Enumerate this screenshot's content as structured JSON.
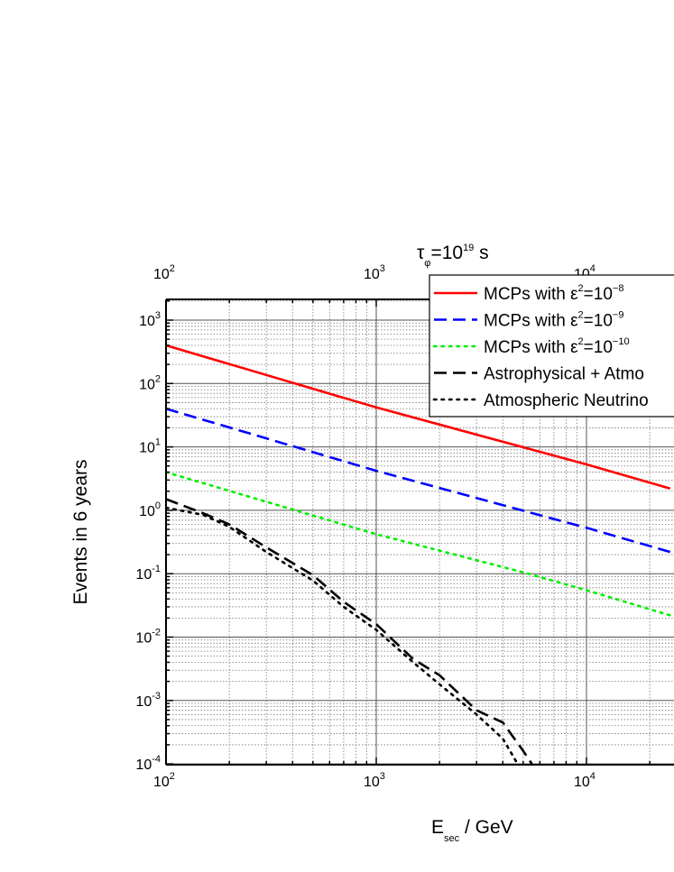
{
  "chart_data": {
    "type": "line",
    "title": "τφ=10¹⁹ s",
    "title_parts": {
      "base": "τ",
      "base_sub": "φ",
      "eq": "=10",
      "sup": "19",
      "unit": " s"
    },
    "xlabel": "Esec / GeV",
    "xlabel_parts": {
      "base": "E",
      "sub": "sec",
      "rest": " / GeV"
    },
    "ylabel": "Events in 6 years",
    "x_scale": "log",
    "y_scale": "log",
    "xlim": [
      100,
      25000
    ],
    "ylim": [
      0.0001,
      2000
    ],
    "grid": true,
    "legend_position": "top-right",
    "x_ticks": [
      {
        "value": 100,
        "base": "10",
        "exp": "2"
      },
      {
        "value": 1000,
        "base": "10",
        "exp": "3"
      },
      {
        "value": 10000,
        "base": "10",
        "exp": "4"
      }
    ],
    "y_ticks": [
      {
        "value": 0.0001,
        "base": "10",
        "exp": "-4"
      },
      {
        "value": 0.001,
        "base": "10",
        "exp": "-3"
      },
      {
        "value": 0.01,
        "base": "10",
        "exp": "-2"
      },
      {
        "value": 0.1,
        "base": "10",
        "exp": "-1"
      },
      {
        "value": 1,
        "base": "10",
        "exp": "0"
      },
      {
        "value": 10,
        "base": "10",
        "exp": "1"
      },
      {
        "value": 100,
        "base": "10",
        "exp": "2"
      },
      {
        "value": 1000,
        "base": "10",
        "exp": "3"
      }
    ],
    "series": [
      {
        "name": "MCPs with ε²=10⁻⁸",
        "label_base": "MCPs with ε",
        "label_sup": "2",
        "label_eq": "=10",
        "label_exp": "−8",
        "color": "#ff0000",
        "dash": "solid",
        "x": [
          100,
          1000,
          10000,
          25000
        ],
        "y": [
          400,
          42,
          5.3,
          2.2
        ]
      },
      {
        "name": "MCPs with ε²=10⁻⁹",
        "label_base": "MCPs with ε",
        "label_sup": "2",
        "label_eq": "=10",
        "label_exp": "−9",
        "color": "#0000ff",
        "dash": "dash",
        "x": [
          100,
          1000,
          10000,
          25000
        ],
        "y": [
          40,
          4.2,
          0.53,
          0.22
        ]
      },
      {
        "name": "MCPs with ε²=10⁻¹⁰",
        "label_base": "MCPs with ε",
        "label_sup": "2",
        "label_eq": "=10",
        "label_exp": "−10",
        "color": "#00ee00",
        "dash": "dot",
        "x": [
          100,
          1000,
          5000,
          10000,
          25000
        ],
        "y": [
          4.0,
          0.42,
          0.105,
          0.055,
          0.022
        ]
      },
      {
        "name": "Astrophysical + Atmospheric",
        "label_base": "Astrophysical + Atmo",
        "label_sup": "",
        "label_eq": "",
        "label_exp": "",
        "color": "#000000",
        "dash": "dash",
        "x": [
          100,
          150,
          200,
          300,
          500,
          700,
          1000,
          1500,
          2000,
          3000,
          4000,
          5000,
          5500
        ],
        "y": [
          1.5,
          0.9,
          0.6,
          0.26,
          0.095,
          0.036,
          0.016,
          0.0045,
          0.0025,
          0.0007,
          0.00045,
          0.00016,
          0.0001
        ]
      },
      {
        "name": "Atmospheric Neutrinos",
        "label_base": "Atmospheric Neutrino",
        "label_sup": "",
        "label_eq": "",
        "label_exp": "",
        "color": "#000000",
        "dash": "dot",
        "x": [
          100,
          150,
          200,
          300,
          500,
          700,
          1000,
          1500,
          2000,
          3000,
          4000,
          4700
        ],
        "y": [
          1.1,
          0.85,
          0.55,
          0.22,
          0.078,
          0.03,
          0.013,
          0.004,
          0.0018,
          0.0006,
          0.00025,
          0.0001
        ]
      }
    ]
  }
}
